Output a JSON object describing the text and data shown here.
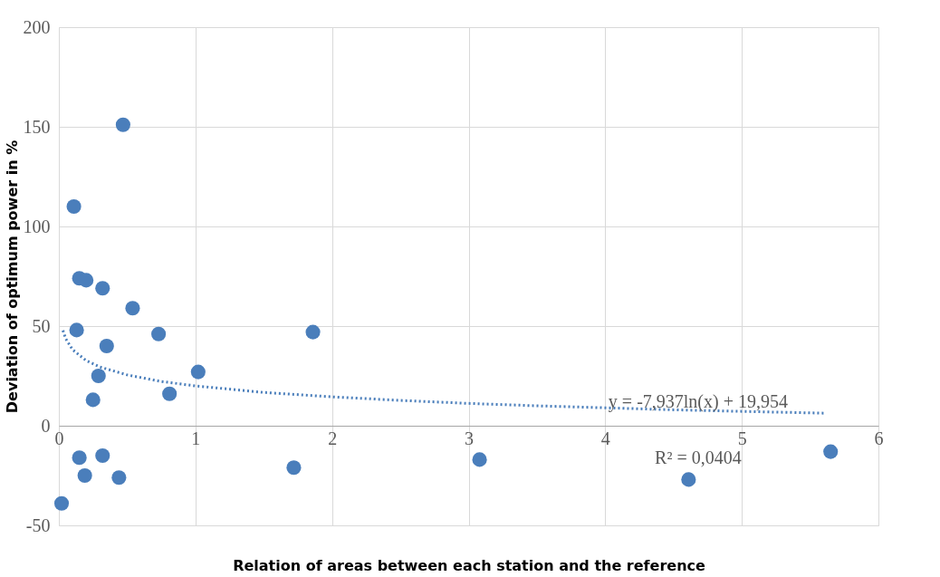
{
  "chart_data": {
    "type": "scatter",
    "xlabel": "Relation of areas between each station and the reference",
    "ylabel": "Deviation of optimum power in %",
    "xlim": [
      0,
      6
    ],
    "xticks": [
      0,
      1,
      2,
      3,
      4,
      5,
      6
    ],
    "ylim": [
      -50,
      200
    ],
    "yticks": [
      -50,
      0,
      50,
      100,
      150,
      200
    ],
    "grid": true,
    "series": [
      {
        "type": "scatter",
        "marker": "circle",
        "color": "#4a7ebb",
        "x": [
          0.47,
          0.11,
          0.15,
          0.2,
          0.32,
          0.54,
          0.13,
          0.73,
          1.86,
          0.35,
          1.02,
          0.29,
          0.81,
          0.25,
          0.15,
          0.32,
          0.19,
          0.44,
          0.02,
          1.72,
          3.08,
          4.61,
          5.65
        ],
        "values": [
          151,
          110,
          74,
          73,
          69,
          59,
          48,
          46,
          47,
          40,
          27,
          25,
          16,
          13,
          -16,
          -15,
          -25,
          -26,
          -39,
          -21,
          -17,
          -27,
          -13
        ]
      },
      {
        "type": "line",
        "color": "#4a7ebb",
        "line_style": "dotted",
        "x": [
          0.03,
          0.05,
          0.1,
          0.2,
          0.3,
          0.5,
          0.75,
          1,
          1.5,
          2,
          2.5,
          3,
          3.5,
          4,
          4.5,
          5,
          5.6
        ],
        "values": [
          47.8,
          43.7,
          38.2,
          32.7,
          29.5,
          25.5,
          22.2,
          20.0,
          16.7,
          14.5,
          12.7,
          11.2,
          10.0,
          9.0,
          8.0,
          7.2,
          6.3
        ]
      }
    ],
    "annotations": [
      "y = -7,937ln(x) + 19,954",
      "R² = 0,0404"
    ]
  }
}
